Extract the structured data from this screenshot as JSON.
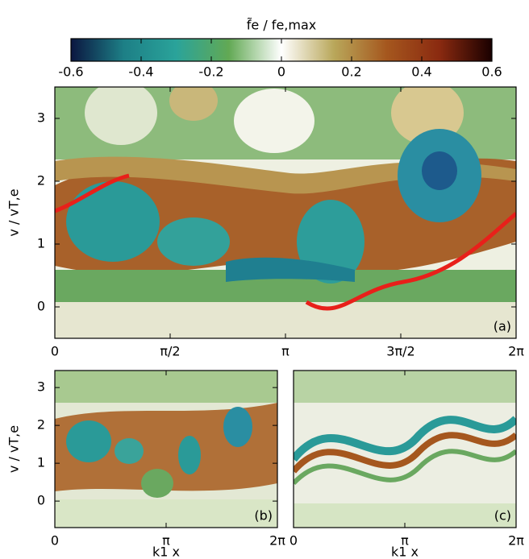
{
  "chart_data": [
    {
      "type": "colorbar",
      "title": "f̃e / fe,max",
      "colors": [
        "#0b1640",
        "#1d7f86",
        "#2aa39a",
        "#62a954",
        "#ffffff",
        "#b9a75a",
        "#a5571e",
        "#8a2a10",
        "#1a0000"
      ],
      "xlim": [
        -0.6,
        0.6
      ],
      "xticks": [
        -0.6,
        -0.4,
        -0.2,
        0,
        0.2,
        0.4,
        0.6
      ]
    },
    {
      "type": "heatmap",
      "annotation": "(a)",
      "ylabel": "v / vT,e",
      "xlim": [
        0,
        6.2832
      ],
      "ylim": [
        -0.5,
        3.5
      ],
      "yticks": [
        0,
        1,
        2,
        3
      ],
      "xticks": [
        0,
        {
          "value": 1.5708,
          "label": "π/2"
        },
        {
          "value": 3.1416,
          "label": "π"
        },
        {
          "value": 4.7124,
          "label": "3π/2"
        },
        {
          "value": 6.2832,
          "label": "2π"
        }
      ]
    },
    {
      "type": "heatmap",
      "annotation": "(b)",
      "ylabel": "v / vT,e",
      "xlabel": "k1 x",
      "xlim": [
        0,
        6.2832
      ],
      "ylim": [
        -0.7,
        3.45
      ],
      "yticks": [
        0,
        1,
        2,
        3
      ],
      "xticks": [
        0,
        {
          "value": 3.1416,
          "label": "π"
        },
        {
          "value": 6.2832,
          "label": "2π"
        }
      ]
    },
    {
      "type": "heatmap",
      "annotation": "(c)",
      "xlabel": "k1 x",
      "xlim": [
        0,
        6.2832
      ],
      "ylim": [
        -0.7,
        3.45
      ],
      "xticks": [
        0,
        {
          "value": 3.1416,
          "label": "π"
        },
        {
          "value": 6.2832,
          "label": "2π"
        }
      ]
    }
  ]
}
